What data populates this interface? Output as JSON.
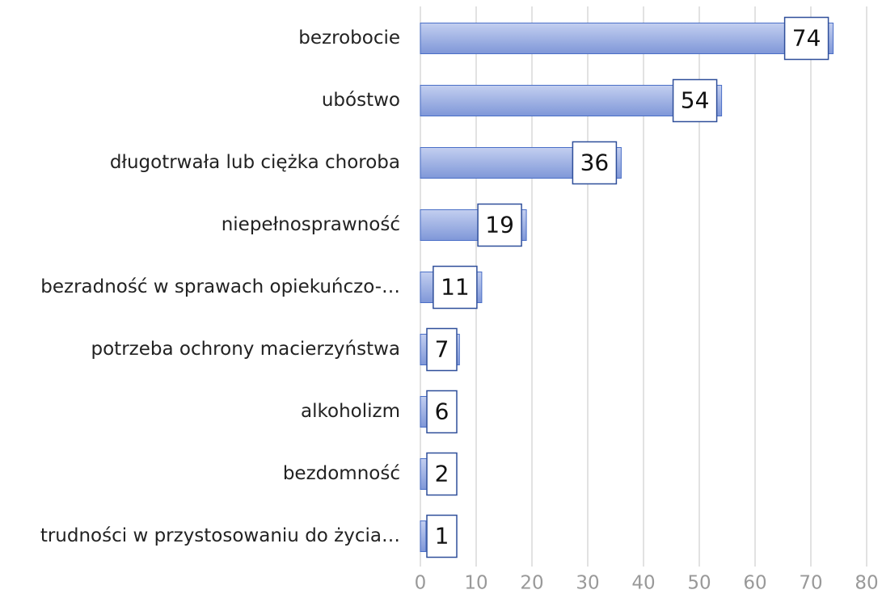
{
  "chart_data": {
    "type": "hbar",
    "categories": [
      "bezrobocie",
      "ubóstwo",
      "długotrwała lub ciężka choroba",
      "niepełnosprawność",
      "bezradność w sprawach opiekuńczo-…",
      "potrzeba ochrony macierzyństwa",
      "alkoholizm",
      "bezdomność",
      "trudności w przystosowaniu do życia…"
    ],
    "values": [
      74,
      54,
      36,
      19,
      11,
      7,
      6,
      2,
      1
    ],
    "color": "#8ca2de",
    "xlim": [
      0,
      80
    ],
    "xticks": [
      0,
      10,
      20,
      30,
      40,
      50,
      60,
      70,
      80
    ],
    "grid": true
  }
}
